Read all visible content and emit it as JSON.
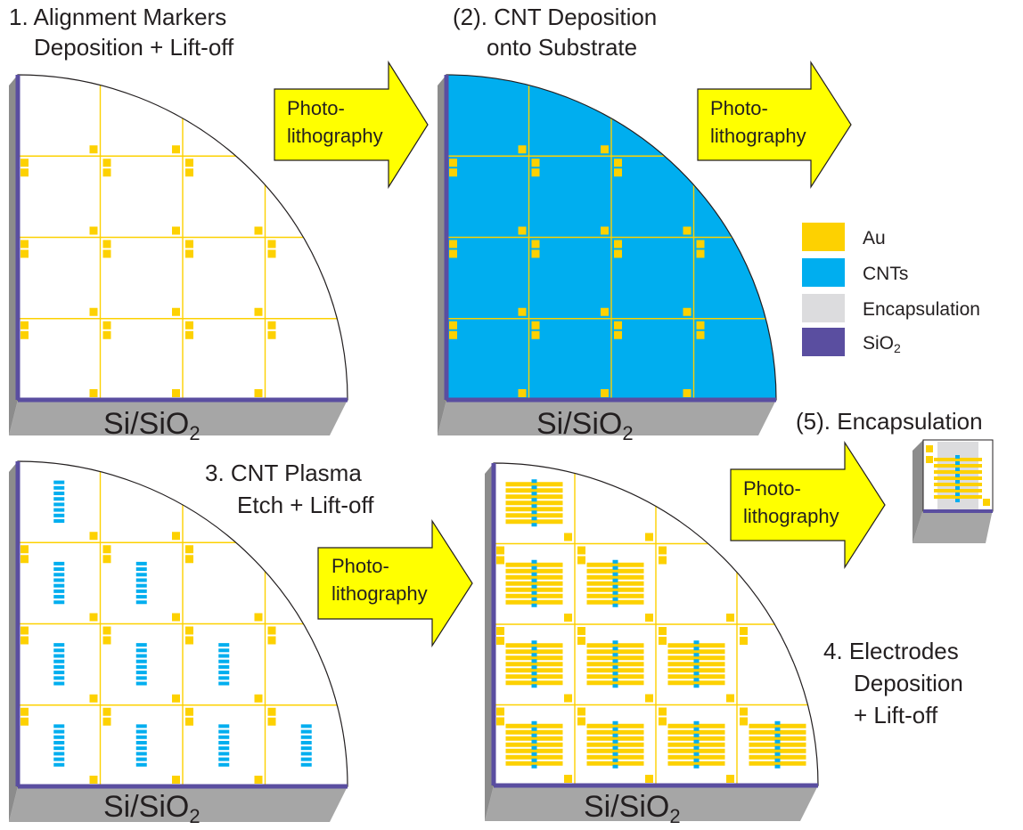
{
  "colors": {
    "au": "#fdd101",
    "cnt": "#00aeef",
    "encapsulation": "#dcdcde",
    "sio2": "#5a4ea0",
    "arrow": "#ffff00",
    "side_face": "#a6a6a6"
  },
  "steps": {
    "s1": {
      "line1": "1. Alignment Markers",
      "line2": "Deposition + Lift-off"
    },
    "s2": {
      "line1": "(2). CNT Deposition",
      "line2": "onto Substrate"
    },
    "s3": {
      "line1": "3. CNT Plasma",
      "line2": "Etch + Lift-off"
    },
    "s4": {
      "line1": "4. Electrodes",
      "line2": "Deposition",
      "line3": "+ Lift-off"
    },
    "s5": {
      "line1": "(5). Encapsulation"
    }
  },
  "arrows": {
    "line1": "Photo-",
    "line2": "lithography"
  },
  "substrate": {
    "prefix": "Si/SiO",
    "subscript": "2"
  },
  "legend": {
    "items": [
      {
        "label": "Au"
      },
      {
        "label": "CNTs"
      },
      {
        "label": "Encapsulation"
      },
      {
        "label_main": "SiO",
        "label_sub": "2"
      }
    ]
  }
}
